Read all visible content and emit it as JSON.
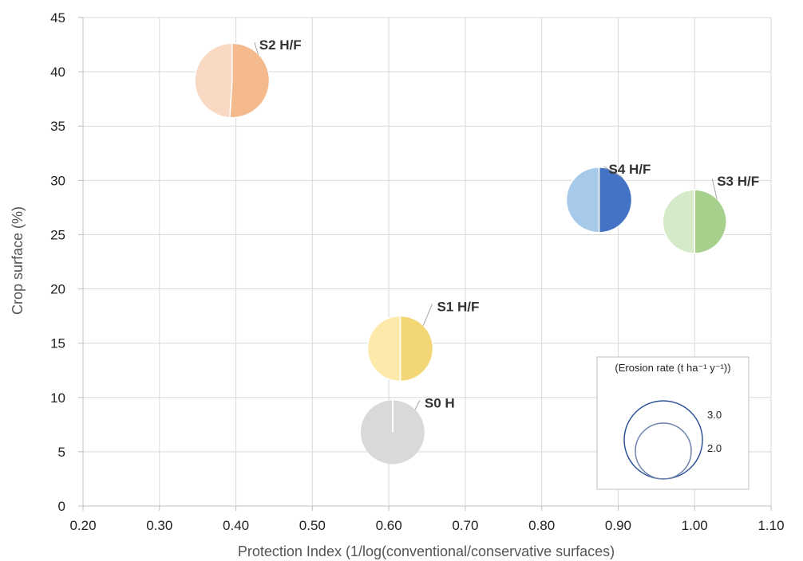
{
  "chart_data": {
    "type": "bubble-pie",
    "xlabel": "Protection Index (1/log(conventional/conservative surfaces)",
    "ylabel": "Crop surface (%)",
    "xlim": [
      0.2,
      1.1
    ],
    "ylim": [
      0,
      45
    ],
    "x_ticks": [
      "0.20",
      "0.30",
      "0.40",
      "0.50",
      "0.60",
      "0.70",
      "0.80",
      "0.90",
      "1.00",
      "1.10"
    ],
    "y_ticks": [
      "0",
      "5",
      "10",
      "15",
      "20",
      "25",
      "30",
      "35",
      "40",
      "45"
    ],
    "grid": true,
    "points": [
      {
        "label": "S0 H",
        "x": 0.605,
        "y": 6.8,
        "erosion": 1.9,
        "slices": [
          1.0
        ],
        "colors": [
          "#d9d9d9"
        ]
      },
      {
        "label": "S1 H/F",
        "x": 0.615,
        "y": 14.5,
        "erosion": 2.0,
        "slices": [
          0.5,
          0.5
        ],
        "colors": [
          "#fde9a9",
          "#f3d675"
        ]
      },
      {
        "label": "S2 H/F",
        "x": 0.395,
        "y": 39.2,
        "erosion": 2.6,
        "slices": [
          0.51,
          0.49
        ],
        "colors": [
          "#f9d9c3",
          "#f4b98c"
        ]
      },
      {
        "label": "S3 H/F",
        "x": 1.0,
        "y": 26.2,
        "erosion": 1.9,
        "slices": [
          0.5,
          0.5
        ],
        "colors": [
          "#d4eac8",
          "#a8d08d"
        ]
      },
      {
        "label": "S4 H/F",
        "x": 0.875,
        "y": 28.2,
        "erosion": 2.0,
        "slices": [
          0.5,
          0.5
        ],
        "colors": [
          "#a7c9ea",
          "#4472c4"
        ]
      }
    ],
    "legend": {
      "title": "(Erosion rate (t ha⁻¹ y⁻¹))",
      "position": "bottom-right",
      "entries": [
        {
          "value": 3.0,
          "label": "3.0",
          "stroke": "#2f5597"
        },
        {
          "value": 2.0,
          "label": "2.0",
          "stroke": "#2f5597"
        }
      ]
    }
  }
}
